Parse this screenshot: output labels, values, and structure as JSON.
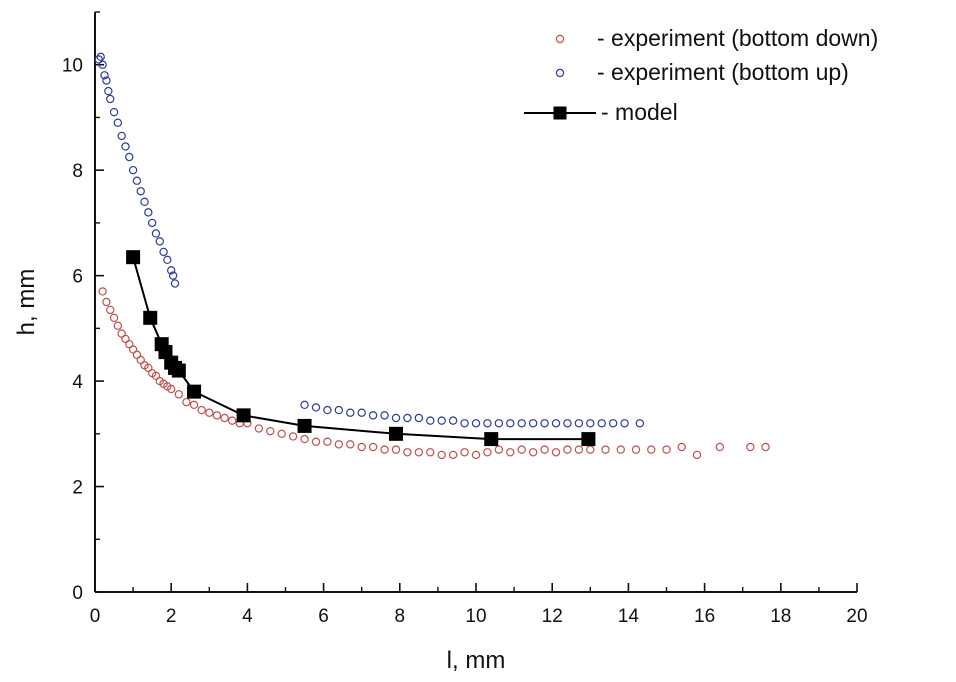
{
  "chart_data": {
    "type": "scatter",
    "title": "",
    "xlabel": "l, mm",
    "ylabel": "h, mm",
    "xlim": [
      0,
      20
    ],
    "ylim": [
      0,
      11
    ],
    "xticks": [
      0,
      2,
      4,
      6,
      8,
      10,
      12,
      14,
      16,
      18,
      20
    ],
    "yticks": [
      0,
      2,
      4,
      6,
      8,
      10
    ],
    "legend_position": "top-right",
    "grid": false,
    "series": [
      {
        "name": "- experiment (bottom down)",
        "kind": "scatter",
        "marker": "circle-open",
        "color": "#c0504d",
        "x": [
          0.2,
          0.3,
          0.4,
          0.5,
          0.6,
          0.7,
          0.8,
          0.9,
          1.0,
          1.1,
          1.2,
          1.3,
          1.4,
          1.5,
          1.6,
          1.7,
          1.8,
          1.9,
          2.0,
          2.2,
          2.4,
          2.6,
          2.8,
          3.0,
          3.2,
          3.4,
          3.6,
          3.8,
          4.0,
          4.3,
          4.6,
          4.9,
          5.2,
          5.5,
          5.8,
          6.1,
          6.4,
          6.7,
          7.0,
          7.3,
          7.6,
          7.9,
          8.2,
          8.5,
          8.8,
          9.1,
          9.4,
          9.7,
          10.0,
          10.3,
          10.6,
          10.9,
          11.2,
          11.5,
          11.8,
          12.1,
          12.4,
          12.7,
          13.0,
          13.4,
          13.8,
          14.2,
          14.6,
          15.0,
          15.4,
          15.8,
          16.4,
          17.2,
          17.6
        ],
        "y": [
          5.7,
          5.5,
          5.35,
          5.2,
          5.05,
          4.9,
          4.8,
          4.7,
          4.6,
          4.5,
          4.4,
          4.3,
          4.25,
          4.15,
          4.1,
          4.0,
          3.95,
          3.9,
          3.85,
          3.75,
          3.6,
          3.55,
          3.45,
          3.4,
          3.35,
          3.3,
          3.25,
          3.2,
          3.2,
          3.1,
          3.05,
          3.0,
          2.95,
          2.9,
          2.85,
          2.85,
          2.8,
          2.8,
          2.75,
          2.75,
          2.7,
          2.7,
          2.65,
          2.65,
          2.65,
          2.6,
          2.6,
          2.65,
          2.6,
          2.65,
          2.7,
          2.65,
          2.7,
          2.65,
          2.7,
          2.65,
          2.7,
          2.7,
          2.7,
          2.7,
          2.7,
          2.7,
          2.7,
          2.7,
          2.75,
          2.6,
          2.75,
          2.75,
          2.75
        ]
      },
      {
        "name": "- experiment (bottom up)",
        "kind": "scatter",
        "marker": "circle-open",
        "color": "#2e3a9e",
        "x": [
          0.1,
          0.15,
          0.2,
          0.25,
          0.3,
          0.35,
          0.4,
          0.5,
          0.6,
          0.7,
          0.8,
          0.9,
          1.0,
          1.1,
          1.2,
          1.3,
          1.4,
          1.5,
          1.6,
          1.7,
          1.8,
          1.9,
          2.0,
          2.05,
          2.1,
          5.5,
          5.8,
          6.1,
          6.4,
          6.7,
          7.0,
          7.3,
          7.6,
          7.9,
          8.2,
          8.5,
          8.8,
          9.1,
          9.4,
          9.7,
          10.0,
          10.3,
          10.6,
          10.9,
          11.2,
          11.5,
          11.8,
          12.1,
          12.4,
          12.7,
          13.0,
          13.3,
          13.6,
          13.9,
          14.3
        ],
        "y": [
          10.1,
          10.15,
          10.0,
          9.8,
          9.7,
          9.5,
          9.35,
          9.1,
          8.9,
          8.65,
          8.45,
          8.25,
          8.0,
          7.8,
          7.6,
          7.4,
          7.2,
          7.0,
          6.8,
          6.65,
          6.45,
          6.3,
          6.1,
          6.0,
          5.85,
          3.55,
          3.5,
          3.45,
          3.45,
          3.4,
          3.4,
          3.35,
          3.35,
          3.3,
          3.3,
          3.3,
          3.25,
          3.25,
          3.25,
          3.2,
          3.2,
          3.2,
          3.2,
          3.2,
          3.2,
          3.2,
          3.2,
          3.2,
          3.2,
          3.2,
          3.2,
          3.2,
          3.2,
          3.2,
          3.2
        ]
      },
      {
        "name": "- model",
        "kind": "line",
        "marker": "square-filled",
        "color": "#000000",
        "x": [
          1.0,
          1.45,
          1.75,
          1.85,
          2.0,
          2.1,
          2.2,
          2.6,
          3.9,
          5.5,
          7.9,
          10.4,
          12.95
        ],
        "y": [
          6.35,
          5.2,
          4.7,
          4.55,
          4.35,
          4.25,
          4.2,
          3.8,
          3.35,
          3.15,
          3.0,
          2.9,
          2.9
        ]
      }
    ]
  }
}
